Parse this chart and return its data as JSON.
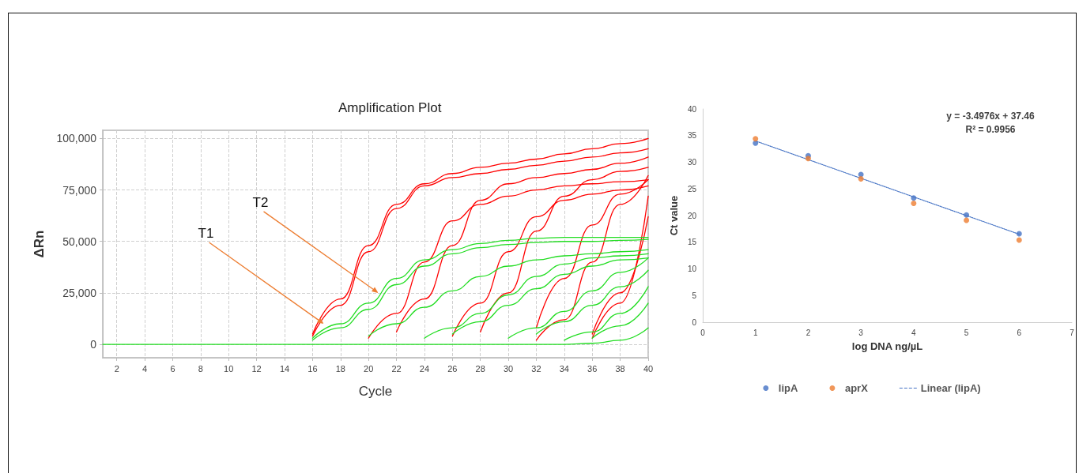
{
  "chart_data": [
    {
      "type": "line",
      "title": "Amplification Plot",
      "xlabel": "Cycle",
      "ylabel": "ΔRn",
      "x": [
        1,
        2,
        4,
        6,
        8,
        10,
        12,
        14,
        16,
        18,
        20,
        22,
        24,
        26,
        28,
        30,
        32,
        34,
        36,
        38,
        40
      ],
      "xlim": [
        1,
        40
      ],
      "xticks": [
        2,
        4,
        6,
        8,
        10,
        12,
        14,
        16,
        18,
        20,
        22,
        24,
        26,
        28,
        30,
        32,
        34,
        36,
        38,
        40
      ],
      "ylim": [
        -6500,
        104000
      ],
      "yticks": [
        {
          "value": 0,
          "label": "0"
        },
        {
          "value": 25000,
          "label": "25,000"
        },
        {
          "value": 50000,
          "label": "50,000"
        },
        {
          "value": 75000,
          "label": "75,000"
        },
        {
          "value": 100000,
          "label": "100,000"
        }
      ],
      "grid": true,
      "legend": false,
      "marker": "none",
      "line_style": "solid",
      "annotations": [
        {
          "text": "T1",
          "x": 16.8,
          "y": 10000
        },
        {
          "text": "T2",
          "x": 20.7,
          "y": 25000
        }
      ],
      "series": [
        {
          "color": "#ff0000",
          "values": [
            null,
            null,
            null,
            null,
            null,
            null,
            null,
            null,
            5000,
            22000,
            48000,
            68000,
            78000,
            83000,
            86000,
            88000,
            90000,
            92500,
            95000,
            97500,
            100000
          ]
        },
        {
          "color": "#ff0000",
          "values": [
            null,
            null,
            null,
            null,
            null,
            null,
            null,
            null,
            4000,
            19000,
            45000,
            66000,
            77000,
            81000,
            83000,
            85000,
            87000,
            89000,
            91000,
            93000,
            95000
          ]
        },
        {
          "color": "#ff0000",
          "values": [
            null,
            null,
            null,
            null,
            null,
            null,
            null,
            null,
            null,
            null,
            3000,
            15000,
            40000,
            60000,
            68000,
            72000,
            75000,
            77000,
            78000,
            79000,
            80000
          ]
        },
        {
          "color": "#ff0000",
          "values": [
            null,
            null,
            null,
            null,
            null,
            null,
            null,
            null,
            null,
            null,
            null,
            6000,
            22000,
            48000,
            70000,
            78000,
            81000,
            83000,
            85000,
            88000,
            91000
          ]
        },
        {
          "color": "#ff0000",
          "values": [
            null,
            null,
            null,
            null,
            null,
            null,
            null,
            null,
            null,
            null,
            null,
            null,
            null,
            4000,
            20000,
            45000,
            62000,
            70000,
            73000,
            75000,
            77000
          ]
        },
        {
          "color": "#ff0000",
          "values": [
            null,
            null,
            null,
            null,
            null,
            null,
            null,
            null,
            null,
            null,
            null,
            null,
            null,
            null,
            6000,
            25000,
            55000,
            72000,
            80000,
            84000,
            86000
          ]
        },
        {
          "color": "#ff0000",
          "values": [
            null,
            null,
            null,
            null,
            null,
            null,
            null,
            null,
            null,
            null,
            null,
            null,
            null,
            null,
            null,
            null,
            8000,
            32000,
            58000,
            73000,
            80000
          ]
        },
        {
          "color": "#ff0000",
          "values": [
            null,
            null,
            null,
            null,
            null,
            null,
            null,
            null,
            null,
            null,
            null,
            null,
            null,
            null,
            null,
            null,
            2000,
            12000,
            40000,
            68000,
            82000
          ]
        },
        {
          "color": "#ff0000",
          "values": [
            null,
            null,
            null,
            null,
            null,
            null,
            null,
            null,
            null,
            null,
            null,
            null,
            null,
            null,
            null,
            null,
            null,
            null,
            5000,
            25000,
            62000
          ]
        },
        {
          "color": "#ff0000",
          "values": [
            null,
            null,
            null,
            null,
            null,
            null,
            null,
            null,
            null,
            null,
            null,
            null,
            null,
            null,
            null,
            null,
            null,
            null,
            3000,
            20000,
            72000
          ]
        },
        {
          "color": "#22dd22",
          "values": [
            null,
            null,
            null,
            null,
            null,
            null,
            null,
            null,
            3000,
            10000,
            20000,
            32000,
            41000,
            46000,
            49000,
            50500,
            51500,
            52000,
            52000,
            52000,
            52000
          ]
        },
        {
          "color": "#22dd22",
          "values": [
            null,
            null,
            null,
            null,
            null,
            null,
            null,
            null,
            2000,
            8000,
            17000,
            29000,
            38000,
            44000,
            47000,
            48500,
            49500,
            50000,
            50000,
            50500,
            51000
          ]
        },
        {
          "color": "#22dd22",
          "values": [
            null,
            null,
            null,
            null,
            null,
            null,
            null,
            null,
            null,
            null,
            4000,
            10000,
            18000,
            26000,
            33000,
            38000,
            41000,
            43000,
            44000,
            45000,
            46000
          ]
        },
        {
          "color": "#22dd22",
          "values": [
            null,
            null,
            null,
            null,
            null,
            null,
            null,
            null,
            null,
            null,
            null,
            null,
            3000,
            8000,
            15000,
            24000,
            33000,
            39000,
            42000,
            43000,
            44000
          ]
        },
        {
          "color": "#22dd22",
          "values": [
            null,
            null,
            null,
            null,
            null,
            null,
            null,
            null,
            null,
            null,
            null,
            null,
            null,
            5000,
            11000,
            19000,
            27000,
            34000,
            38000,
            41000,
            42000
          ]
        },
        {
          "color": "#22dd22",
          "values": [
            null,
            null,
            null,
            null,
            null,
            null,
            null,
            null,
            null,
            null,
            null,
            null,
            null,
            null,
            null,
            3000,
            8000,
            16000,
            26000,
            35000,
            42000
          ]
        },
        {
          "color": "#22dd22",
          "values": [
            null,
            null,
            null,
            null,
            null,
            null,
            null,
            null,
            null,
            null,
            null,
            null,
            null,
            null,
            null,
            null,
            5000,
            11000,
            19000,
            28000,
            36000
          ]
        },
        {
          "color": "#22dd22",
          "values": [
            null,
            null,
            null,
            null,
            null,
            null,
            null,
            null,
            null,
            null,
            null,
            null,
            null,
            null,
            null,
            null,
            null,
            2000,
            6000,
            15000,
            28000
          ]
        },
        {
          "color": "#22dd22",
          "values": [
            null,
            null,
            null,
            null,
            null,
            null,
            null,
            null,
            null,
            null,
            null,
            null,
            null,
            null,
            null,
            null,
            null,
            null,
            3000,
            9000,
            20000
          ]
        },
        {
          "color": "#22dd22",
          "values": [
            0,
            0,
            0,
            0,
            0,
            0,
            0,
            0,
            0,
            0,
            0,
            0,
            0,
            0,
            0,
            0,
            0,
            0,
            500,
            2000,
            8000
          ]
        }
      ]
    },
    {
      "type": "scatter",
      "xlabel": "log DNA ng/µL",
      "ylabel": "Ct value",
      "x": [
        1,
        2,
        3,
        4,
        5,
        6
      ],
      "xlim": [
        0,
        7
      ],
      "xticks": [
        0,
        1,
        2,
        3,
        4,
        5,
        6,
        7
      ],
      "ylim": [
        0,
        40
      ],
      "yticks": [
        0,
        5,
        10,
        15,
        20,
        25,
        30,
        35,
        40
      ],
      "grid": false,
      "legend": "bottom",
      "marker": "circle",
      "annotations": [
        "y = -3.4976x + 37.46",
        "R² = 0.9956"
      ],
      "series": [
        {
          "name": "lipA",
          "color": "#4472c4",
          "values": [
            33.6,
            31.2,
            27.7,
            23.3,
            20.1,
            16.6
          ]
        },
        {
          "name": "aprX",
          "color": "#ed7d31",
          "values": [
            34.4,
            30.7,
            26.9,
            22.3,
            19.1,
            15.4
          ]
        },
        {
          "name": "Linear (lipA)",
          "type": "line",
          "color": "#4472c4",
          "marker": "none",
          "line_style": "dotted",
          "x": [
            1,
            6
          ],
          "values": [
            34.0,
            16.5
          ]
        }
      ]
    }
  ]
}
